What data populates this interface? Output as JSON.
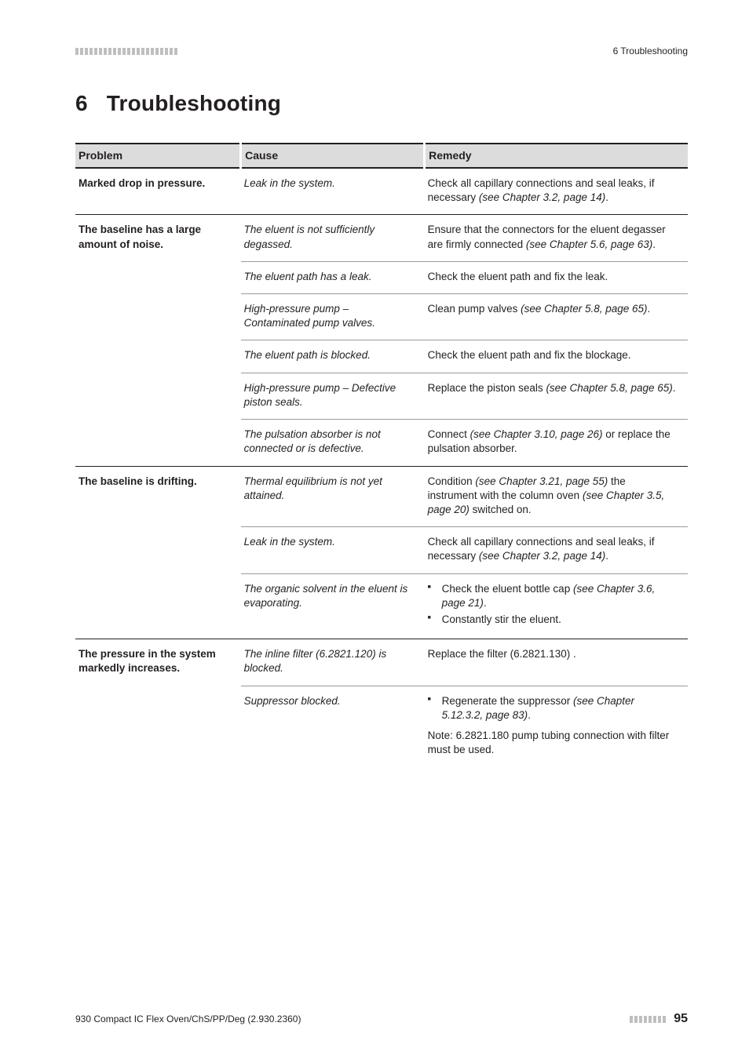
{
  "header": {
    "right": "6 Troubleshooting",
    "stripes": {
      "count": 22,
      "color": "#bfbfbf",
      "width": 4,
      "gap": 2,
      "height": 9
    }
  },
  "chapter": {
    "number": "6",
    "title": "Troubleshooting"
  },
  "table": {
    "columns": {
      "problem": "Problem",
      "cause": "Cause",
      "remedy": "Remedy"
    },
    "groups": [
      {
        "problem": "Marked drop in pressure.",
        "rows": [
          {
            "cause": "Leak in the system.",
            "remedy_html": "Check all capillary connections and seal leaks, if necessary <em>(see Chapter 3.2, page 14)</em>."
          }
        ]
      },
      {
        "problem": "The baseline has a large amount of noise.",
        "rows": [
          {
            "cause": "The eluent is not sufficiently degassed.",
            "remedy_html": "Ensure that the connectors for the eluent degasser are firmly connected <em>(see Chapter 5.6, page 63)</em>."
          },
          {
            "cause": "The eluent path has a leak.",
            "remedy_html": "Check the eluent path and fix the leak."
          },
          {
            "cause": "High-pressure pump – Contaminated pump valves.",
            "remedy_html": "Clean pump valves <em>(see Chapter 5.8, page 65)</em>."
          },
          {
            "cause": "The eluent path is blocked.",
            "remedy_html": "Check the eluent path and fix the blockage."
          },
          {
            "cause": "High-pressure pump – Defective piston seals.",
            "remedy_html": "Replace the piston seals <em>(see Chapter 5.8, page 65)</em>."
          },
          {
            "cause": "The pulsation absorber is not connected or is defective.",
            "remedy_html": "Connect <em>(see Chapter 3.10, page 26)</em> or replace the pulsation absorber."
          }
        ]
      },
      {
        "problem": "The baseline is drifting.",
        "rows": [
          {
            "cause": "Thermal equilibrium is not yet attained.",
            "remedy_html": "Condition <em>(see Chapter 3.21, page 55)</em> the instrument with the column oven <em>(see Chapter 3.5, page 20)</em> switched on."
          },
          {
            "cause": "Leak in the system.",
            "remedy_html": "Check all capillary connections and seal leaks, if necessary <em>(see Chapter 3.2, page 14)</em>."
          },
          {
            "cause": "The organic solvent in the eluent is evaporating.",
            "remedy_bullets": [
              "Check the eluent bottle cap <em>(see Chapter 3.6, page 21)</em>.",
              "Constantly stir the eluent."
            ]
          }
        ]
      },
      {
        "problem": "The pressure in the system markedly increases.",
        "rows": [
          {
            "cause": "The inline filter (6.2821.120) is blocked.",
            "remedy_html": "Replace the filter (6.2821.130) ."
          },
          {
            "cause": "Suppressor blocked.",
            "remedy_bullets": [
              "Regenerate the suppressor <em>(see Chapter 5.12.3.2, page 83)</em>."
            ],
            "remedy_after": "Note: 6.2821.180 pump tubing connection with filter must be used."
          }
        ]
      }
    ],
    "colors": {
      "header_bg": "#dcdcdc",
      "rule_strong": "#231f20",
      "rule_light": "#9a9a9a"
    }
  },
  "footer": {
    "left": "930 Compact IC Flex Oven/ChS/PP/Deg (2.930.2360)",
    "page": "95",
    "stripes": {
      "count": 8,
      "color": "#bfbfbf",
      "width": 4,
      "gap": 2,
      "height": 9
    }
  }
}
